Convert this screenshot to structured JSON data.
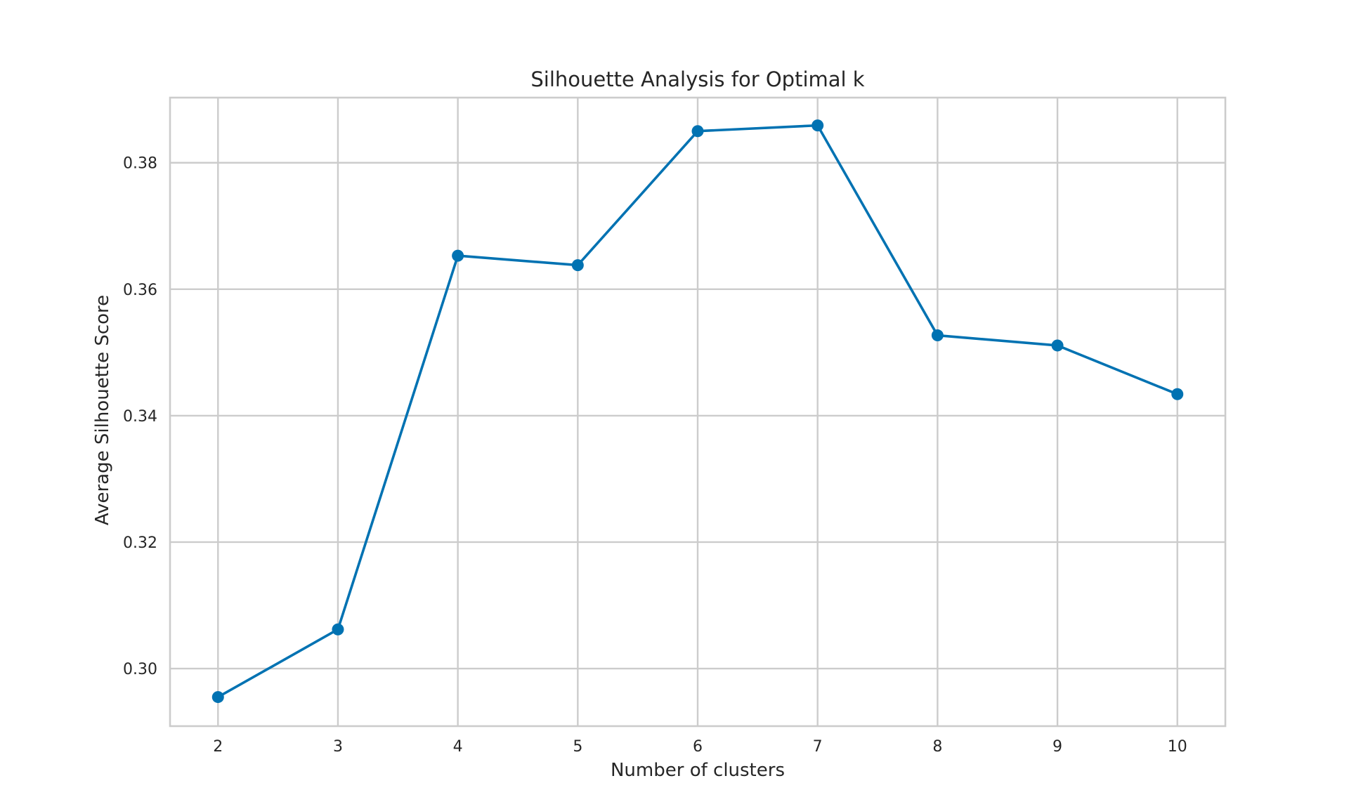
{
  "chart_data": {
    "type": "line",
    "title": "Silhouette Analysis for Optimal k",
    "xlabel": "Number of clusters",
    "ylabel": "Average Silhouette Score",
    "x": [
      2,
      3,
      4,
      5,
      6,
      7,
      8,
      9,
      10
    ],
    "x_ticks": [
      "2",
      "3",
      "4",
      "5",
      "6",
      "7",
      "8",
      "9",
      "10"
    ],
    "y_ticks": [
      "0.30",
      "0.32",
      "0.34",
      "0.36",
      "0.38"
    ],
    "y_tick_values": [
      0.3,
      0.32,
      0.34,
      0.36,
      0.38
    ],
    "xlim": [
      1.6,
      10.4
    ],
    "ylim": [
      0.2909,
      0.3903
    ],
    "grid": true,
    "series": [
      {
        "values": [
          0.2955,
          0.3062,
          0.3653,
          0.3638,
          0.385,
          0.3859,
          0.3527,
          0.3511,
          0.3434
        ],
        "color": "#0072b2",
        "marker": "circle"
      }
    ]
  }
}
